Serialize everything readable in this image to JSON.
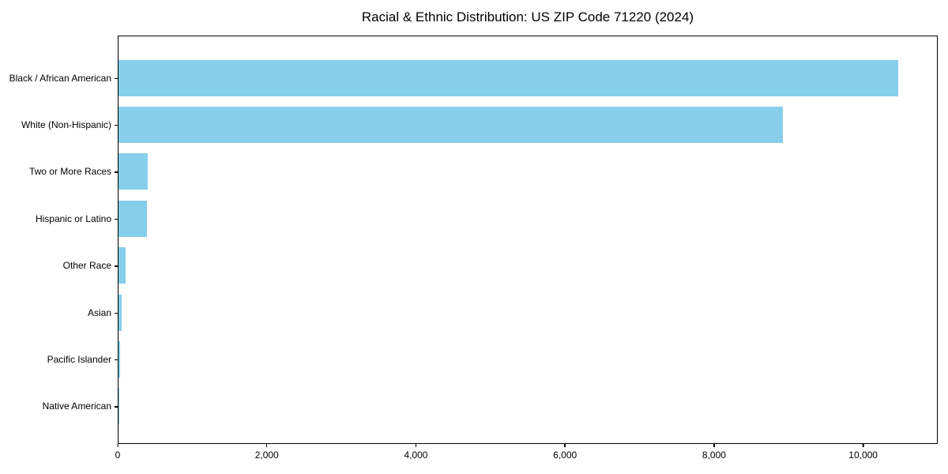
{
  "chart_data": {
    "type": "bar",
    "orientation": "horizontal",
    "title": "Racial & Ethnic Distribution: US ZIP Code 71220 (2024)",
    "xlabel": "",
    "ylabel": "",
    "categories": [
      "Black / African American",
      "White (Non-Hispanic)",
      "Two or More Races",
      "Hispanic or Latino",
      "Other Race",
      "Asian",
      "Pacific Islander",
      "Native American"
    ],
    "values": [
      10480,
      8930,
      390,
      380,
      95,
      45,
      20,
      5
    ],
    "xlim": [
      0,
      11000
    ],
    "x_ticks": [
      {
        "value": 0,
        "label": "0"
      },
      {
        "value": 2000,
        "label": "2,000"
      },
      {
        "value": 4000,
        "label": "4,000"
      },
      {
        "value": 6000,
        "label": "6,000"
      },
      {
        "value": 8000,
        "label": "8,000"
      },
      {
        "value": 10000,
        "label": "10,000"
      }
    ],
    "grid": false,
    "legend": null,
    "colors": {
      "bar": "#87CEEB",
      "text": "#000000",
      "spine": "#000000",
      "background": "#ffffff"
    }
  }
}
